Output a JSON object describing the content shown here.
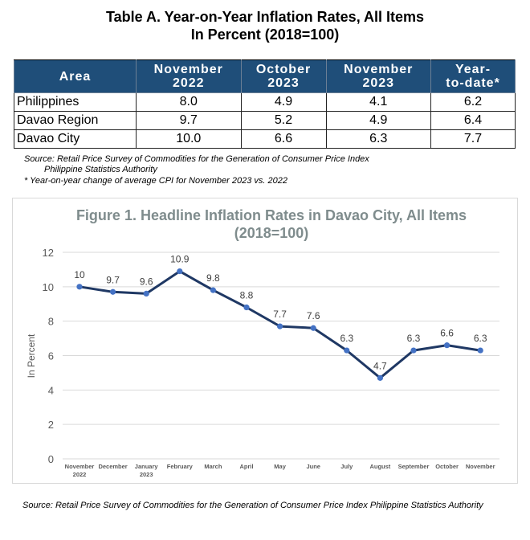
{
  "table": {
    "title_line1": "Table A. Year-on-Year Inflation Rates, All Items",
    "title_line2": "In Percent (2018=100)",
    "headers": [
      {
        "line1": "Area",
        "line2": ""
      },
      {
        "line1": "November",
        "line2": "2022"
      },
      {
        "line1": "October",
        "line2": "2023"
      },
      {
        "line1": "November",
        "line2": "2023"
      },
      {
        "line1": "Year-",
        "line2": "to-date*"
      }
    ],
    "rows": [
      {
        "area": "Philippines",
        "nov2022": "8.0",
        "oct2023": "4.9",
        "nov2023": "4.1",
        "ytd": "6.2"
      },
      {
        "area": "Davao Region",
        "nov2022": "9.7",
        "oct2023": "5.2",
        "nov2023": "4.9",
        "ytd": "6.4"
      },
      {
        "area": "Davao City",
        "nov2022": "10.0",
        "oct2023": "6.6",
        "nov2023": "6.3",
        "ytd": "7.7"
      }
    ],
    "source_line1": "Source: Retail Price Survey of Commodities for the Generation of Consumer Price Index",
    "source_line2": "Philippine Statistics Authority",
    "footnote": "* Year-on-year change of average CPI for November 2023 vs. 2022"
  },
  "chart_data": {
    "type": "line",
    "title_line1": "Figure 1. Headline Inflation Rates in Davao City, All Items",
    "title_line2": "(2018=100)",
    "ylabel": "In Percent",
    "ylim": [
      0,
      12
    ],
    "yticks": [
      0,
      2,
      4,
      6,
      8,
      10,
      12
    ],
    "grid": true,
    "categories": [
      {
        "line1": "November",
        "line2": "2022"
      },
      {
        "line1": "December",
        "line2": ""
      },
      {
        "line1": "January",
        "line2": "2023"
      },
      {
        "line1": "February",
        "line2": ""
      },
      {
        "line1": "March",
        "line2": ""
      },
      {
        "line1": "April",
        "line2": ""
      },
      {
        "line1": "May",
        "line2": ""
      },
      {
        "line1": "June",
        "line2": ""
      },
      {
        "line1": "July",
        "line2": ""
      },
      {
        "line1": "August",
        "line2": ""
      },
      {
        "line1": "September",
        "line2": ""
      },
      {
        "line1": "October",
        "line2": ""
      },
      {
        "line1": "November",
        "line2": ""
      }
    ],
    "series": [
      {
        "values": [
          10,
          9.7,
          9.6,
          10.9,
          9.8,
          8.8,
          7.7,
          7.6,
          6.3,
          4.7,
          6.3,
          6.6,
          6.3
        ]
      }
    ],
    "data_labels": [
      "10",
      "9.7",
      "9.6",
      "10.9",
      "9.8",
      "8.8",
      "7.7",
      "7.6",
      "6.3",
      "4.7",
      "6.3",
      "6.6",
      "6.3"
    ],
    "colors": {
      "line": "#1f3864",
      "marker": "#4472c4",
      "grid": "#d9d9d9",
      "title": "#7f8c8d"
    }
  },
  "chart_source": "Source: Retail Price Survey of Commodities for the Generation of Consumer Price Index Philippine Statistics Authority"
}
